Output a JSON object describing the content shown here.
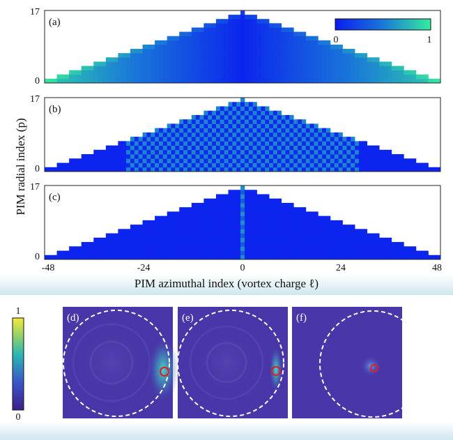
{
  "chart_data": [
    {
      "type": "heatmap",
      "panel": "(a)",
      "xlabel": "PIM azimuthal index (vortex charge ℓ)",
      "ylabel": "PIM radial index (p)",
      "xlim": [
        -48,
        48
      ],
      "ylim": [
        0,
        17
      ],
      "x_ticks": [
        "-48",
        "-24",
        "0",
        "24",
        "48"
      ],
      "y_ticks": [
        "0",
        "17"
      ],
      "envelope": "p_max = floor((48 - |l|) / 3), p_max(0) = 16",
      "value_trend": "low (~0) near l = 0 rising to ~0.85 at the outer envelope edge",
      "colorbar": {
        "min_label": "0",
        "max_label": "1",
        "placement": "top-right"
      }
    },
    {
      "type": "heatmap",
      "panel": "(b)",
      "xlim": [
        -48,
        48
      ],
      "ylim": [
        0,
        17
      ],
      "y_ticks": [
        "0",
        "17"
      ],
      "value_trend": "checkerboard (~0.55 / ~0.05) inside a narrowing inner triangle, two bright diagonal bands (~0.8) along its flanks, ~0.05 elsewhere"
    },
    {
      "type": "heatmap",
      "panel": "(c)",
      "xlim": [
        -48,
        48
      ],
      "ylim": [
        0,
        17
      ],
      "y_ticks": [
        "0",
        "17"
      ],
      "value_trend": "~0.05 everywhere except a single bright column (~0.6) at l = 0"
    },
    {
      "type": "heatmap",
      "panel": "(d)",
      "note": "measured intensity, bright crescent near right edge of dashed circle, red marker at right",
      "colorbar": {
        "min_label": "0",
        "max_label": "1"
      }
    },
    {
      "type": "heatmap",
      "panel": "(e)",
      "note": "measured intensity, bright thin arc near right edge, red marker slightly inside"
    },
    {
      "type": "heatmap",
      "panel": "(f)",
      "note": "measured intensity, faint central spot with red marker at centre"
    }
  ],
  "labels": {
    "panel_a": "(a)",
    "panel_b": "(b)",
    "panel_c": "(c)",
    "panel_d": "(d)",
    "panel_e": "(e)",
    "panel_f": "(f)",
    "xlabel": "PIM azimuthal index (vortex charge ℓ)",
    "ylabel": "PIM radial index (p)",
    "x_ticks": [
      "-48",
      "-24",
      "0",
      "24",
      "48"
    ],
    "y_tick_top": "17",
    "y_tick_bottom": "0",
    "cbar_top_min": "0",
    "cbar_top_max": "1",
    "cbar_bottom_max": "1",
    "cbar_bottom_min": "0"
  },
  "colors": {
    "map_low": "#0a1cf0",
    "map_mid": "#1a78d8",
    "map_high": "#35ec9c",
    "field_bg": "#4936a8",
    "bright_field": "#3ec3a8",
    "marker": "#e02020",
    "band": "#cfe6ef"
  }
}
